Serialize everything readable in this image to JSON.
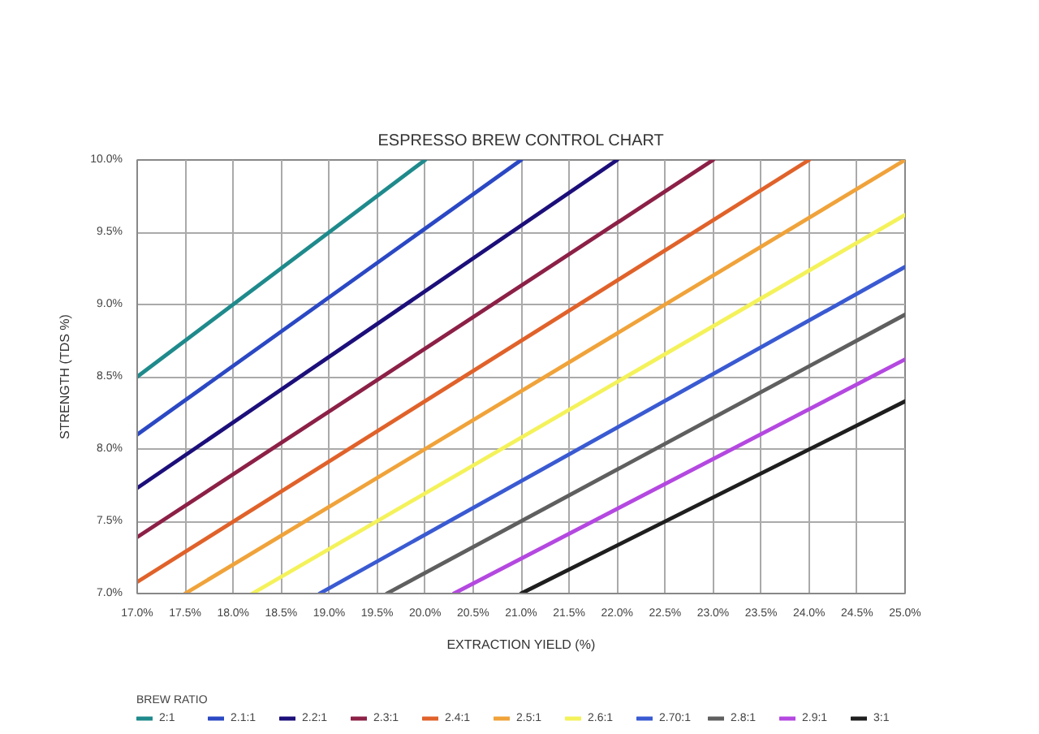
{
  "chart_data": {
    "type": "line",
    "title": "ESPRESSO BREW CONTROL CHART",
    "xlabel": "EXTRACTION YIELD (%)",
    "ylabel": "STRENGTH (TDS %)",
    "legend_title": "BREW RATIO",
    "xlim": [
      17,
      25
    ],
    "ylim": [
      7,
      10
    ],
    "xticks": [
      {
        "value": 17,
        "label": "17.0%"
      },
      {
        "value": 17.5,
        "label": "17.5%"
      },
      {
        "value": 18,
        "label": "18.0%"
      },
      {
        "value": 18.5,
        "label": "18.5%"
      },
      {
        "value": 19,
        "label": "19.0%"
      },
      {
        "value": 19.5,
        "label": "19.5%"
      },
      {
        "value": 20,
        "label": "20.0%"
      },
      {
        "value": 20.5,
        "label": "20.5%"
      },
      {
        "value": 21,
        "label": "21.0%"
      },
      {
        "value": 21.5,
        "label": "21.5%"
      },
      {
        "value": 22,
        "label": "22.0%"
      },
      {
        "value": 22.5,
        "label": "22.5%"
      },
      {
        "value": 23,
        "label": "23.0%"
      },
      {
        "value": 23.5,
        "label": "23.5%"
      },
      {
        "value": 24,
        "label": "24.0%"
      },
      {
        "value": 24.5,
        "label": "24.5%"
      },
      {
        "value": 25,
        "label": "25.0%"
      }
    ],
    "yticks": [
      {
        "value": 7,
        "label": "7.0%"
      },
      {
        "value": 7.5,
        "label": "7.5%"
      },
      {
        "value": 8,
        "label": "8.0%"
      },
      {
        "value": 8.5,
        "label": "8.5%"
      },
      {
        "value": 9,
        "label": "9.0%"
      },
      {
        "value": 9.5,
        "label": "9.5%"
      },
      {
        "value": 10,
        "label": "10.0%"
      }
    ],
    "grid": true,
    "legend": "bottom",
    "marker": "none",
    "line_style": "solid",
    "series": [
      {
        "name": "2:1",
        "color": "#1f8a8c",
        "x": [
          17,
          20
        ],
        "values": [
          8.5,
          10
        ]
      },
      {
        "name": "2.1:1",
        "color": "#2b48c4",
        "x": [
          17,
          21
        ],
        "values": [
          8.1,
          10
        ]
      },
      {
        "name": "2.2:1",
        "color": "#1c0f7a",
        "x": [
          17,
          22
        ],
        "values": [
          7.73,
          10
        ]
      },
      {
        "name": "2.3:1",
        "color": "#8c2046",
        "x": [
          17,
          23
        ],
        "values": [
          7.39,
          10
        ]
      },
      {
        "name": "2.4:1",
        "color": "#e0622a",
        "x": [
          17,
          24
        ],
        "values": [
          7.08,
          10
        ]
      },
      {
        "name": "2.5:1",
        "color": "#f0a33a",
        "x": [
          17.5,
          25
        ],
        "values": [
          7,
          10
        ]
      },
      {
        "name": "2.6:1",
        "color": "#f4f25a",
        "x": [
          18.2,
          25
        ],
        "values": [
          7,
          9.62
        ]
      },
      {
        "name": "2.70:1",
        "color": "#3a5ad2",
        "x": [
          18.9,
          25
        ],
        "values": [
          7,
          9.26
        ]
      },
      {
        "name": "2.8:1",
        "color": "#5f5f5f",
        "x": [
          19.6,
          25
        ],
        "values": [
          7,
          8.93
        ]
      },
      {
        "name": "2.9:1",
        "color": "#b448e0",
        "x": [
          20.3,
          25
        ],
        "values": [
          7,
          8.62
        ]
      },
      {
        "name": "3:1",
        "color": "#1e1e1e",
        "x": [
          21,
          25
        ],
        "values": [
          7,
          8.33
        ]
      }
    ]
  }
}
